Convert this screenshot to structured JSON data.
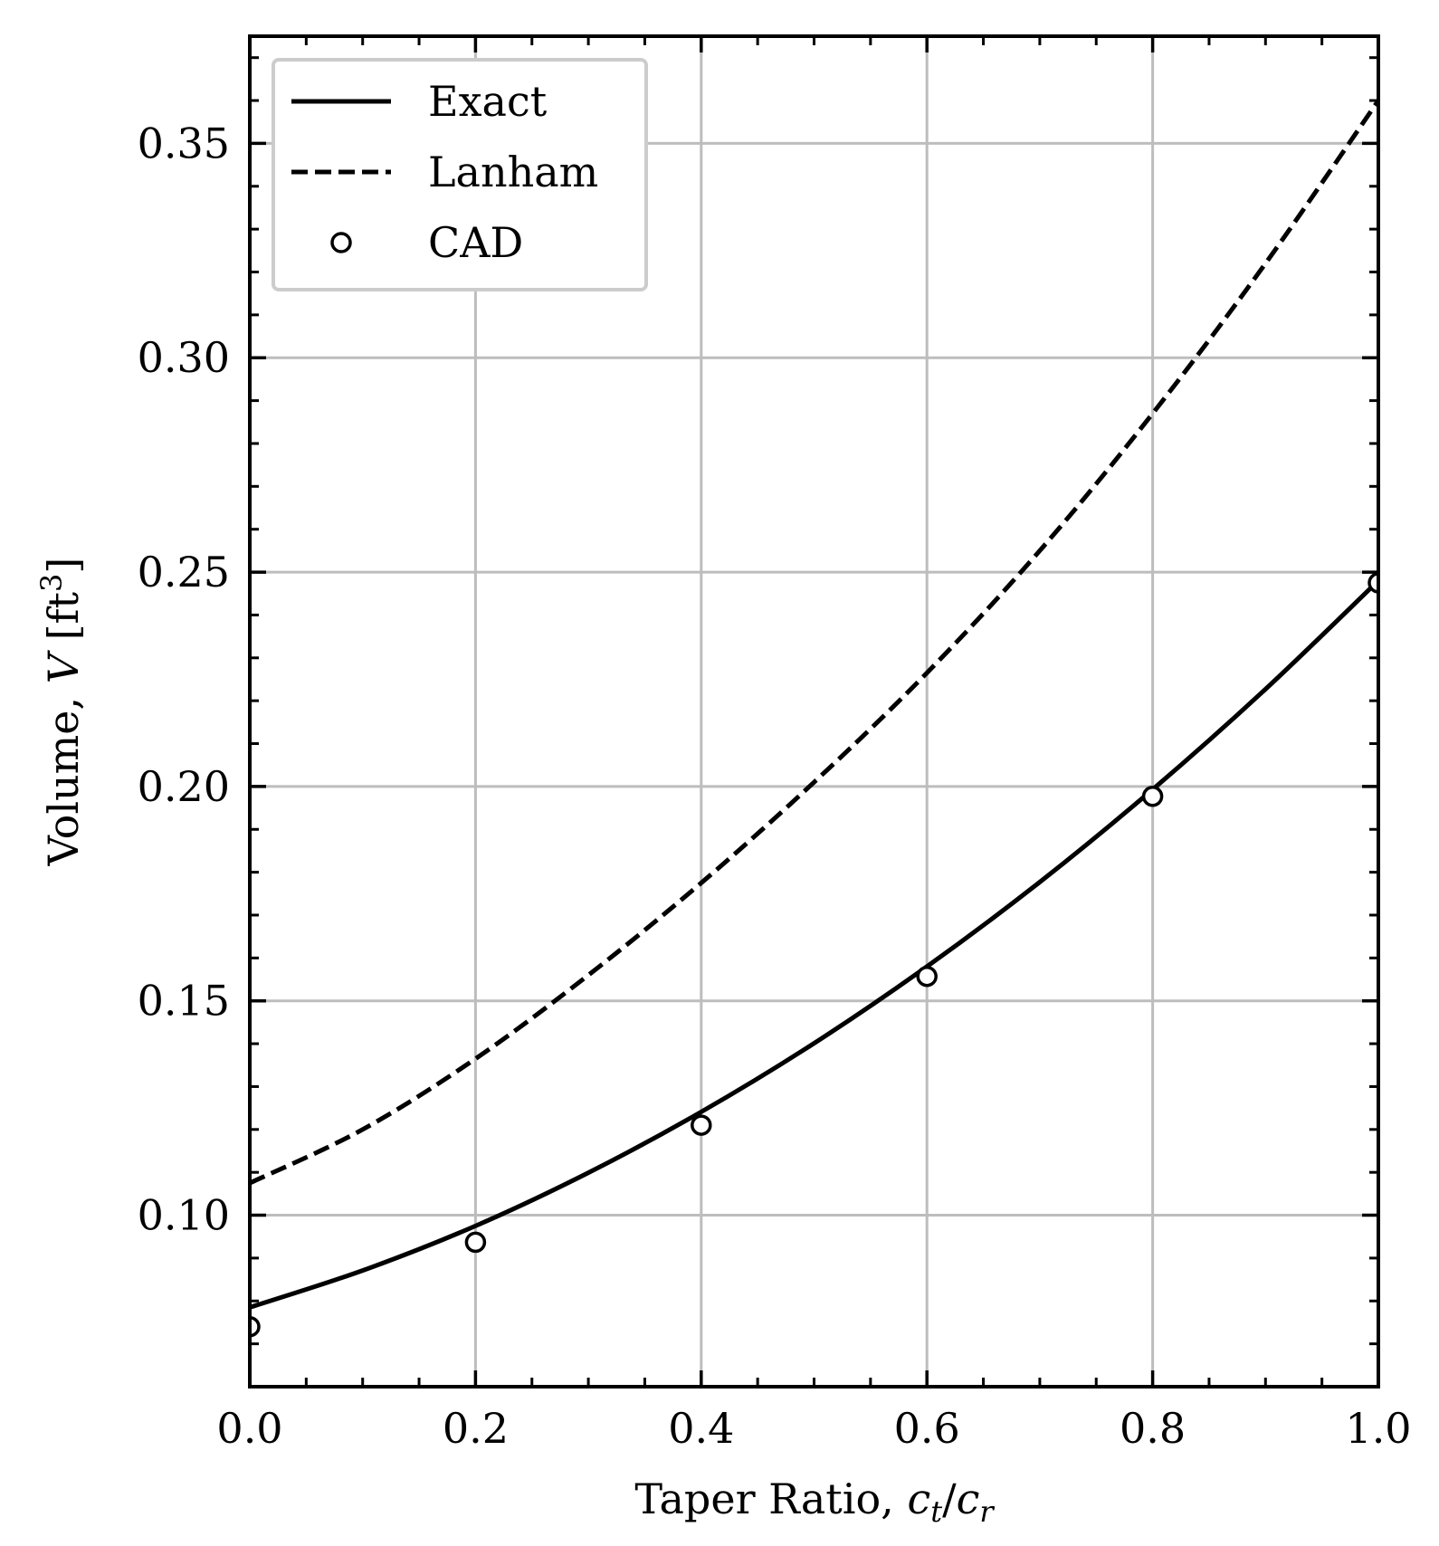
{
  "chart_data": {
    "type": "line",
    "title": "",
    "xlabel": {
      "prefix": "Taper Ratio, ",
      "num": "c",
      "num_sub": "t",
      "slash": "/",
      "den": "c",
      "den_sub": "r"
    },
    "ylabel": {
      "prefix": "Volume, ",
      "var": "V",
      "unit_open": " [ft",
      "unit_sup": "3",
      "unit_close": "]"
    },
    "xlim": [
      0.0,
      1.0
    ],
    "ylim": [
      0.06,
      0.375
    ],
    "xticks": [
      0.0,
      0.2,
      0.4,
      0.6,
      0.8,
      1.0
    ],
    "xtick_labels": [
      "0.0",
      "0.2",
      "0.4",
      "0.6",
      "0.8",
      "1.0"
    ],
    "yticks": [
      0.1,
      0.15,
      0.2,
      0.25,
      0.3,
      0.35
    ],
    "ytick_labels": [
      "0.10",
      "0.15",
      "0.20",
      "0.25",
      "0.30",
      "0.35"
    ],
    "grid": true,
    "legend_position": "top-left",
    "series": [
      {
        "name": "Exact",
        "style": "solid",
        "color": "#000000",
        "x": [
          0.0,
          0.1,
          0.2,
          0.3,
          0.4,
          0.5,
          0.6,
          0.7,
          0.8,
          0.9,
          1.0
        ],
        "y": [
          0.0785,
          0.0871,
          0.0975,
          0.1099,
          0.1241,
          0.1401,
          0.158,
          0.1777,
          0.1993,
          0.2227,
          0.248
        ]
      },
      {
        "name": "Lanham",
        "style": "dashed",
        "color": "#000000",
        "x": [
          0.0,
          0.1,
          0.2,
          0.3,
          0.4,
          0.5,
          0.6,
          0.7,
          0.8,
          0.9,
          1.0
        ],
        "y": [
          0.1075,
          0.12,
          0.1365,
          0.156,
          0.1775,
          0.201,
          0.2265,
          0.255,
          0.287,
          0.322,
          0.36
        ]
      },
      {
        "name": "CAD",
        "style": "markers",
        "marker": "open-circle",
        "color": "#000000",
        "x": [
          0.0,
          0.2,
          0.4,
          0.6,
          0.8,
          1.0
        ],
        "y": [
          0.074,
          0.0937,
          0.121,
          0.1557,
          0.1977,
          0.2475
        ]
      }
    ]
  }
}
